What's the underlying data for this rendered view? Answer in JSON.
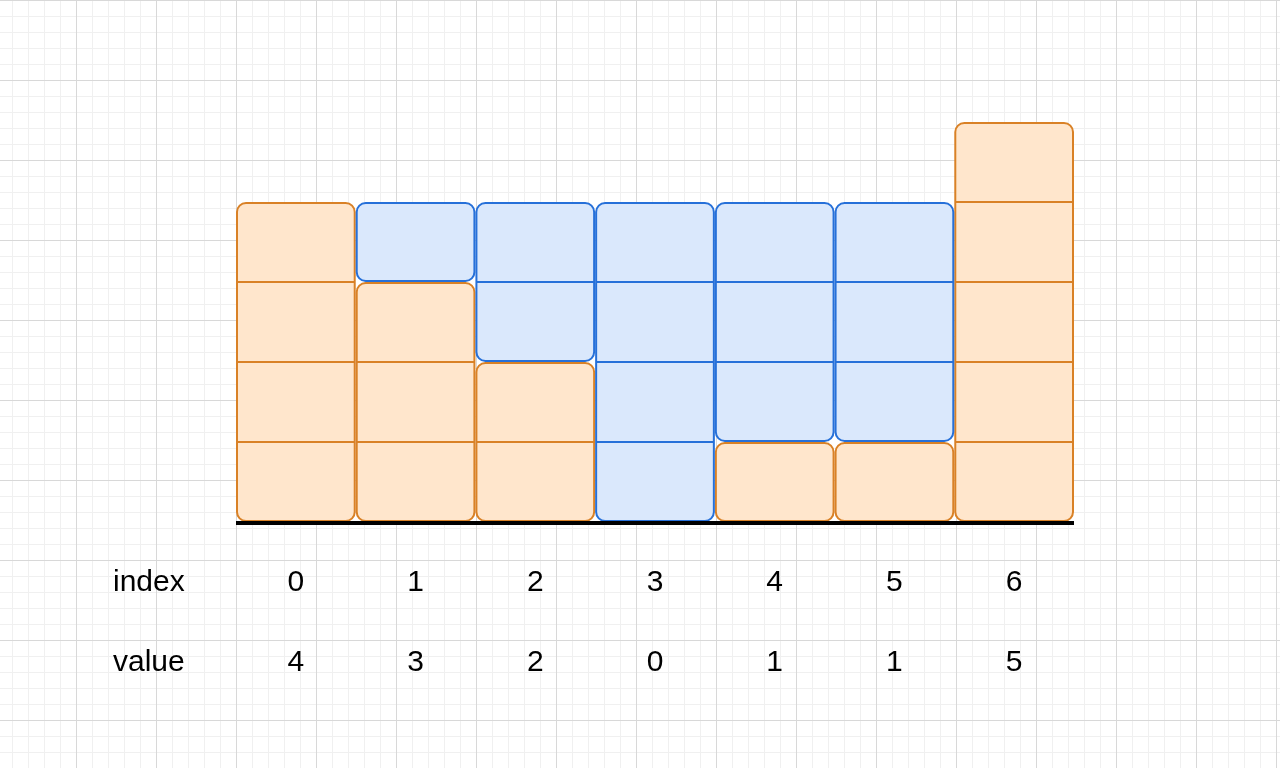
{
  "chart_data": {
    "type": "bar",
    "stacked": true,
    "xlabel": "index",
    "annotations": [
      "value"
    ],
    "categories": [
      "0",
      "1",
      "2",
      "3",
      "4",
      "5",
      "6"
    ],
    "ylim": [
      0,
      5
    ],
    "tick_labels": "x",
    "series": [
      {
        "color": "#ffe6cc",
        "values": [
          4,
          3,
          2,
          0,
          1,
          1,
          5
        ],
        "value_labels": [
          "4",
          "3",
          "2",
          "0",
          "1",
          "1",
          "5"
        ]
      },
      {
        "color": "#dae8fc",
        "values": [
          0,
          1,
          2,
          4,
          3,
          3,
          0
        ]
      }
    ]
  }
}
